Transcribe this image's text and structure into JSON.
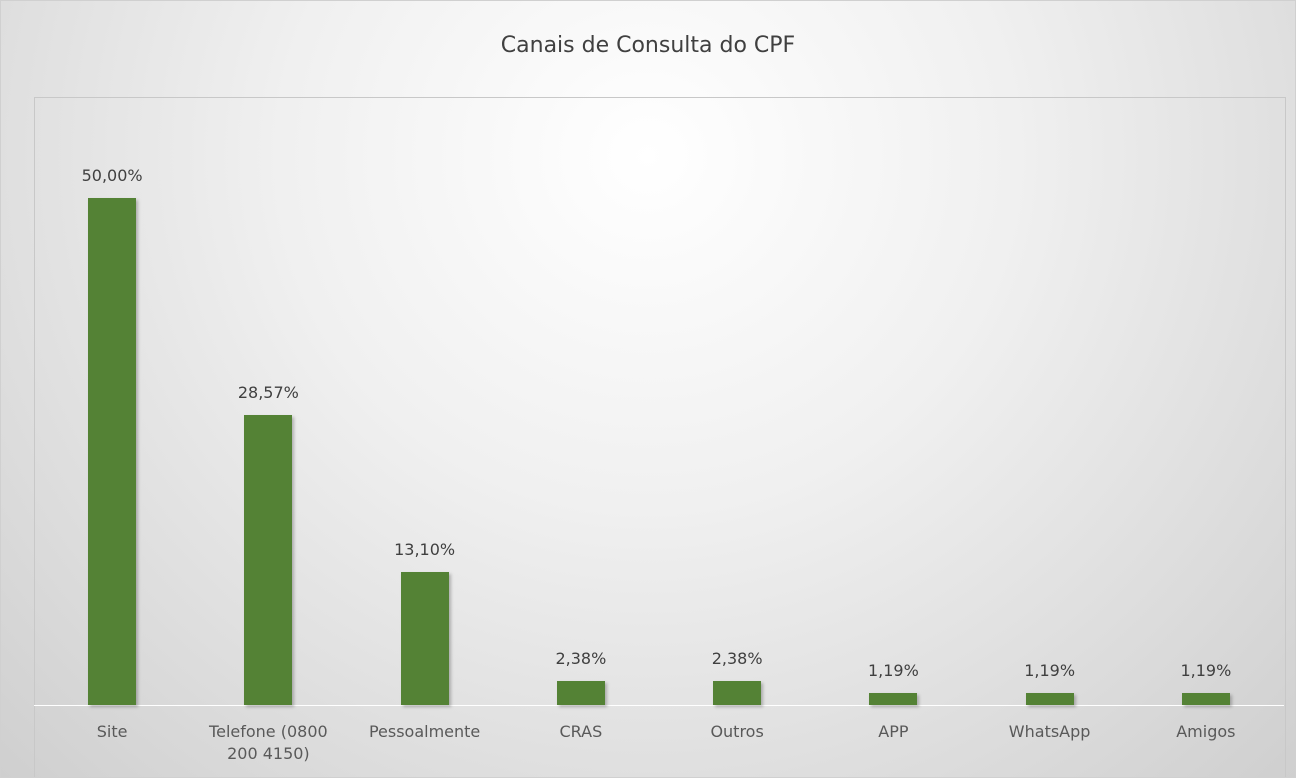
{
  "chart_data": {
    "type": "bar",
    "title": "Canais de Consulta do CPF",
    "categories": [
      "Site",
      "Telefone (0800 200 4150)",
      "Pessoalmente",
      "CRAS",
      "Outros",
      "APP",
      "WhatsApp",
      "Amigos"
    ],
    "values": [
      50.0,
      28.57,
      13.1,
      2.38,
      2.38,
      1.19,
      1.19,
      1.19
    ],
    "value_labels": [
      "50,00%",
      "28,57%",
      "13,10%",
      "2,38%",
      "2,38%",
      "1,19%",
      "1,19%",
      "1,19%"
    ],
    "color": "#548235"
  }
}
